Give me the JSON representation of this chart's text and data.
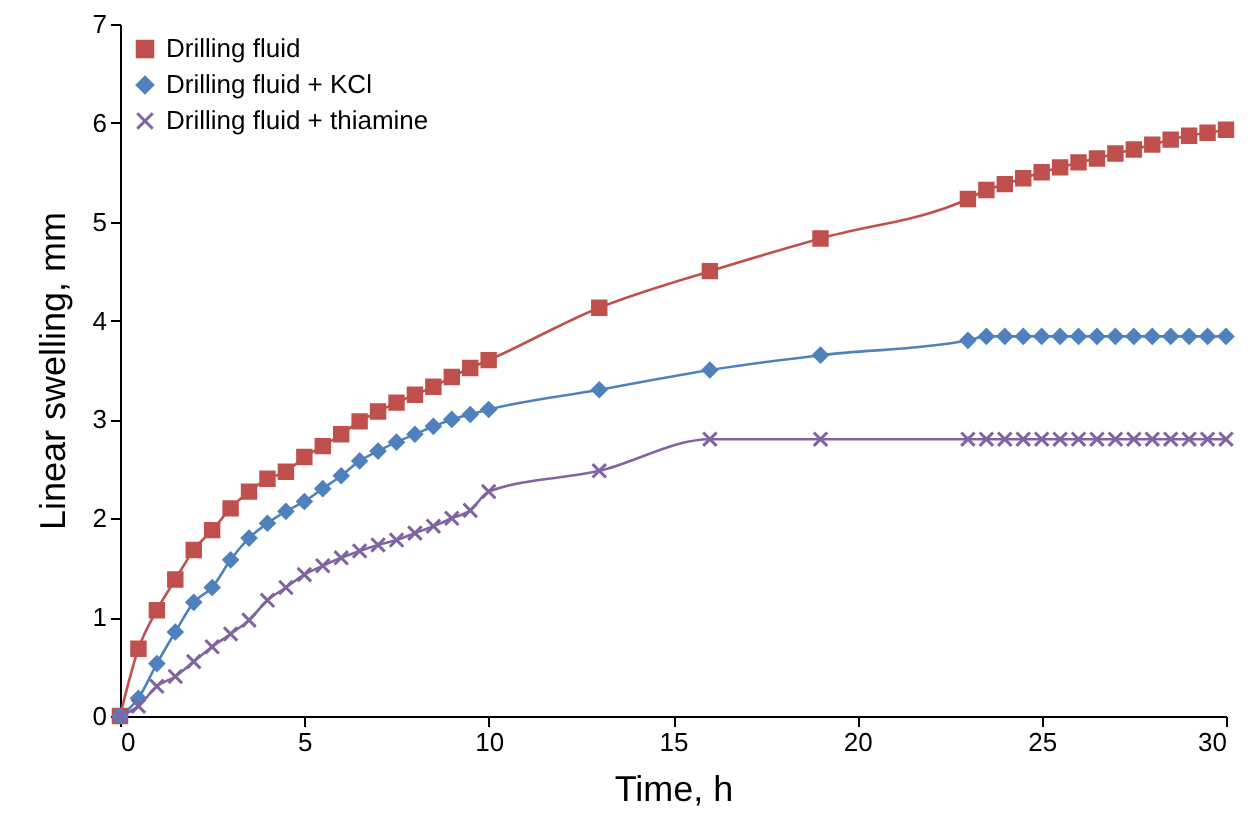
{
  "chart_data": {
    "type": "line",
    "xlabel": "Time, h",
    "ylabel": "Linear swelling, mm",
    "x": [
      0,
      0.5,
      1,
      1.5,
      2,
      2.5,
      3,
      3.5,
      4,
      4.5,
      5,
      5.5,
      6,
      6.5,
      7,
      7.5,
      8,
      8.5,
      9,
      9.5,
      10,
      13,
      16,
      19,
      23,
      23.5,
      24,
      24.5,
      25,
      25.5,
      26,
      26.5,
      27,
      27.5,
      28,
      28.5,
      29,
      29.5,
      30
    ],
    "series": [
      {
        "name": "Drilling fluid",
        "color": "#c0504d",
        "marker": "square",
        "values": [
          0,
          0.68,
          1.07,
          1.38,
          1.68,
          1.88,
          2.1,
          2.27,
          2.4,
          2.47,
          2.62,
          2.73,
          2.85,
          2.98,
          3.08,
          3.17,
          3.25,
          3.33,
          3.43,
          3.52,
          3.6,
          4.13,
          4.5,
          4.83,
          5.23,
          5.32,
          5.38,
          5.44,
          5.5,
          5.55,
          5.6,
          5.64,
          5.69,
          5.73,
          5.78,
          5.83,
          5.87,
          5.9,
          5.93
        ]
      },
      {
        "name": "Drilling fluid + KCl",
        "color": "#4f81bd",
        "marker": "diamond",
        "values": [
          0,
          0.18,
          0.53,
          0.85,
          1.15,
          1.3,
          1.58,
          1.8,
          1.95,
          2.07,
          2.17,
          2.3,
          2.43,
          2.58,
          2.68,
          2.77,
          2.85,
          2.93,
          3.0,
          3.05,
          3.1,
          3.3,
          3.5,
          3.65,
          3.8,
          3.84,
          3.84,
          3.84,
          3.84,
          3.84,
          3.84,
          3.84,
          3.84,
          3.84,
          3.84,
          3.84,
          3.84,
          3.84,
          3.84
        ]
      },
      {
        "name": "Drilling fluid + thiamine",
        "color": "#8064a2",
        "marker": "cross",
        "values": [
          0,
          0.1,
          0.3,
          0.4,
          0.55,
          0.7,
          0.83,
          0.97,
          1.17,
          1.3,
          1.43,
          1.52,
          1.6,
          1.67,
          1.73,
          1.78,
          1.85,
          1.92,
          2.0,
          2.08,
          2.27,
          2.48,
          2.8,
          2.8,
          2.8,
          2.8,
          2.8,
          2.8,
          2.8,
          2.8,
          2.8,
          2.8,
          2.8,
          2.8,
          2.8,
          2.8,
          2.8,
          2.8,
          2.8
        ]
      }
    ],
    "xlim": [
      0,
      30
    ],
    "xticks": [
      0,
      5,
      10,
      15,
      20,
      25,
      30
    ],
    "ylim": [
      0,
      7
    ],
    "yticks": [
      0,
      1,
      2,
      3,
      4,
      5,
      6,
      7
    ],
    "grid": false,
    "legend": "top left",
    "line_style": "solid"
  }
}
